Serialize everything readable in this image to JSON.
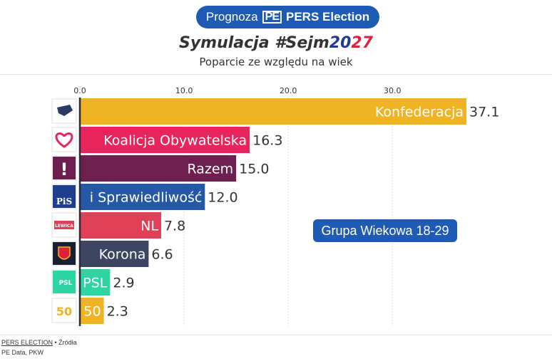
{
  "header": {
    "badge_prefix": "Prognoza",
    "badge_logo": "PE",
    "badge_brand": "PERS Election",
    "title_main": "Symulacja #Sejm",
    "title_year_a": "20",
    "title_year_b": "27",
    "subtitle": "Poparcie ze względu na wiek"
  },
  "age_group_label": "Grupa Wiekowa 18-29",
  "footer": {
    "source_brand": "PERS ELECTION",
    "source_sep": " • Źródła",
    "sources": "PE Data, PKW"
  },
  "chart_data": {
    "type": "bar",
    "orientation": "horizontal",
    "title": "Symulacja #Sejm2027",
    "subtitle": "Poparcie ze względu na wiek",
    "xlim": [
      0,
      37.1
    ],
    "x_ticks": [
      "0.0",
      "10.0",
      "20.0",
      "30.0"
    ],
    "x_tick_values": [
      0,
      10,
      20,
      30
    ],
    "grid": true,
    "categories": [
      "Konfederacja",
      "Koalicja Obywatelska",
      "Razem",
      "Prawo i Sprawiedliwość",
      "NL",
      "Korona",
      "PSL",
      "50"
    ],
    "bar_labels": [
      "Konfederacja",
      "Koalicja Obywatelska",
      "Razem",
      "i Sprawiedliwość",
      "NL",
      "Korona",
      "PSL",
      "50"
    ],
    "values": [
      37.1,
      16.3,
      15.0,
      12.0,
      7.8,
      6.6,
      2.9,
      2.3
    ],
    "value_labels": [
      "37.1",
      "16.3",
      "15.0",
      "12.0",
      "7.8",
      "6.6",
      "2.9",
      "2.3"
    ],
    "colors": [
      "#f0b323",
      "#e8245c",
      "#6d1f4f",
      "#2658a8",
      "#e04057",
      "#3d4563",
      "#2fd4a3",
      "#f0b323"
    ],
    "logo_icons": [
      "konfederacja-logo",
      "ko-heart-logo",
      "razem-logo",
      "pis-logo",
      "lewica-logo",
      "korona-logo",
      "psl-logo",
      "50-logo"
    ],
    "logo_texts": [
      "",
      "",
      "!",
      "PiS",
      "LEWICA",
      "",
      "PSL",
      "50"
    ]
  }
}
